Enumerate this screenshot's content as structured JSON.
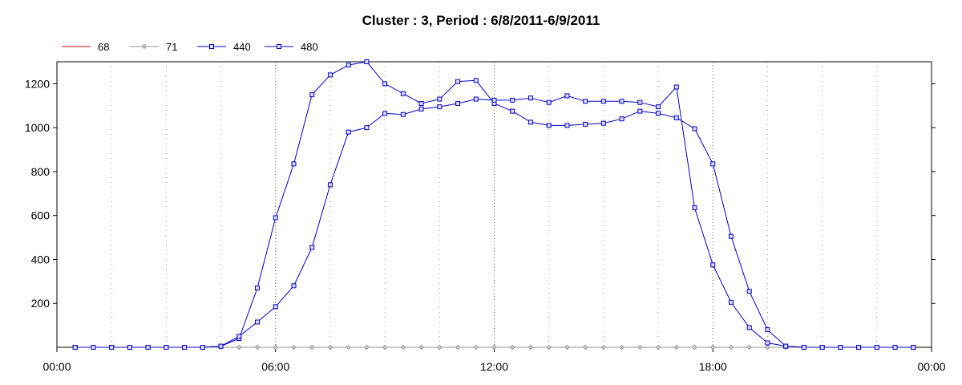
{
  "chart_data": {
    "type": "line",
    "title": "Cluster : 3, Period : 6/8/2011-6/9/2011",
    "xlabel": "",
    "ylabel": "",
    "x_tick_labels": [
      "00:00",
      "06:00",
      "12:00",
      "18:00",
      "00:00"
    ],
    "y_ticks": [
      200,
      400,
      600,
      800,
      1000,
      1200
    ],
    "xlim": [
      0,
      24
    ],
    "ylim": [
      0,
      1300
    ],
    "grid": {
      "vertical_dotted": true,
      "major_every_hours": 6
    },
    "legend_position": "top-left",
    "x": [
      0.5,
      1.0,
      1.5,
      2.0,
      2.5,
      3.0,
      3.5,
      4.0,
      4.5,
      5.0,
      5.5,
      6.0,
      6.5,
      7.0,
      7.5,
      8.0,
      8.5,
      9.0,
      9.5,
      10.0,
      10.5,
      11.0,
      11.5,
      12.0,
      12.5,
      13.0,
      13.5,
      14.0,
      14.5,
      15.0,
      15.5,
      16.0,
      16.5,
      17.0,
      17.5,
      18.0,
      18.5,
      19.0,
      19.5,
      20.0,
      20.5,
      21.0,
      21.5,
      22.0,
      22.5,
      23.0,
      23.5
    ],
    "series": [
      {
        "name": "68",
        "color": "#cc0000",
        "marker": "none",
        "values": [
          0,
          0,
          0,
          0,
          0,
          0,
          0,
          0,
          0,
          0,
          0,
          0,
          0,
          0,
          0,
          0,
          0,
          0,
          0,
          0,
          0,
          0,
          0,
          0,
          0,
          0,
          0,
          0,
          0,
          0,
          0,
          0,
          0,
          0,
          0,
          0,
          0,
          0,
          0,
          0,
          0,
          0,
          0,
          0,
          0,
          0,
          0
        ]
      },
      {
        "name": "71",
        "color": "#909090",
        "marker": "diamond",
        "values": [
          0,
          0,
          0,
          0,
          0,
          0,
          0,
          0,
          0,
          0,
          0,
          0,
          0,
          0,
          0,
          0,
          0,
          0,
          0,
          0,
          0,
          0,
          0,
          0,
          0,
          0,
          0,
          0,
          0,
          0,
          0,
          0,
          0,
          0,
          0,
          0,
          0,
          0,
          0,
          0,
          0,
          0,
          0,
          0,
          0,
          0,
          0
        ]
      },
      {
        "name": "440",
        "color": "#0000cc",
        "marker": "square",
        "values": [
          0,
          0,
          0,
          0,
          0,
          0,
          0,
          0,
          5,
          40,
          270,
          590,
          835,
          1150,
          1240,
          1285,
          1300,
          1200,
          1155,
          1110,
          1130,
          1210,
          1215,
          1110,
          1075,
          1025,
          1010,
          1010,
          1015,
          1020,
          1040,
          1075,
          1065,
          1045,
          995,
          835,
          505,
          255,
          80,
          5,
          0,
          0,
          0,
          0,
          0,
          0,
          0
        ]
      },
      {
        "name": "480",
        "color": "#0000cc",
        "marker": "square",
        "values": [
          0,
          0,
          0,
          0,
          0,
          0,
          0,
          0,
          5,
          50,
          115,
          185,
          280,
          455,
          740,
          980,
          1000,
          1065,
          1060,
          1085,
          1095,
          1110,
          1130,
          1125,
          1125,
          1135,
          1115,
          1145,
          1120,
          1120,
          1120,
          1115,
          1095,
          1185,
          635,
          375,
          205,
          90,
          20,
          5,
          0,
          0,
          0,
          0,
          0,
          0,
          0
        ]
      }
    ]
  }
}
